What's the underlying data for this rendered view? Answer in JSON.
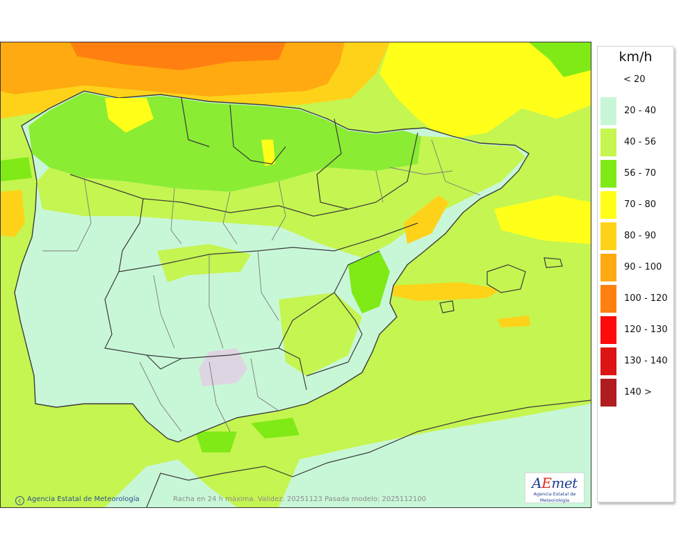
{
  "legend": {
    "unit": "km/h",
    "classes": [
      {
        "label": "< 20",
        "color": null
      },
      {
        "label": "20 - 40",
        "color": "#c8f7d8"
      },
      {
        "label": "40 - 56",
        "color": "#c5f550"
      },
      {
        "label": "56 - 70",
        "color": "#7fea16"
      },
      {
        "label": "70 - 80",
        "color": "#ffff1a"
      },
      {
        "label": "80 - 90",
        "color": "#ffd21a"
      },
      {
        "label": "90 - 100",
        "color": "#ffaa10"
      },
      {
        "label": "100 - 120",
        "color": "#ff8010"
      },
      {
        "label": "120 - 130",
        "color": "#ff0a0a"
      },
      {
        "label": "130 - 140",
        "color": "#dd1414"
      },
      {
        "label": "140 >",
        "color": "#b01c20"
      }
    ]
  },
  "map": {
    "credit": "Agencia Estatal de Meteorología",
    "caption": "Racha en 24 h máxima. Validez: 20251123 Pasada modelo: 2025112100",
    "logo": {
      "word_a": "A",
      "word_e": "E",
      "word_rest": "met",
      "subtitle": "Agencia Estatal de Meteorología"
    },
    "colors": {
      "sea_base": "#c5f550",
      "land_base": "#c8f7d8",
      "border": "#3a3a3a",
      "region_border": "#7a7a7a"
    }
  }
}
